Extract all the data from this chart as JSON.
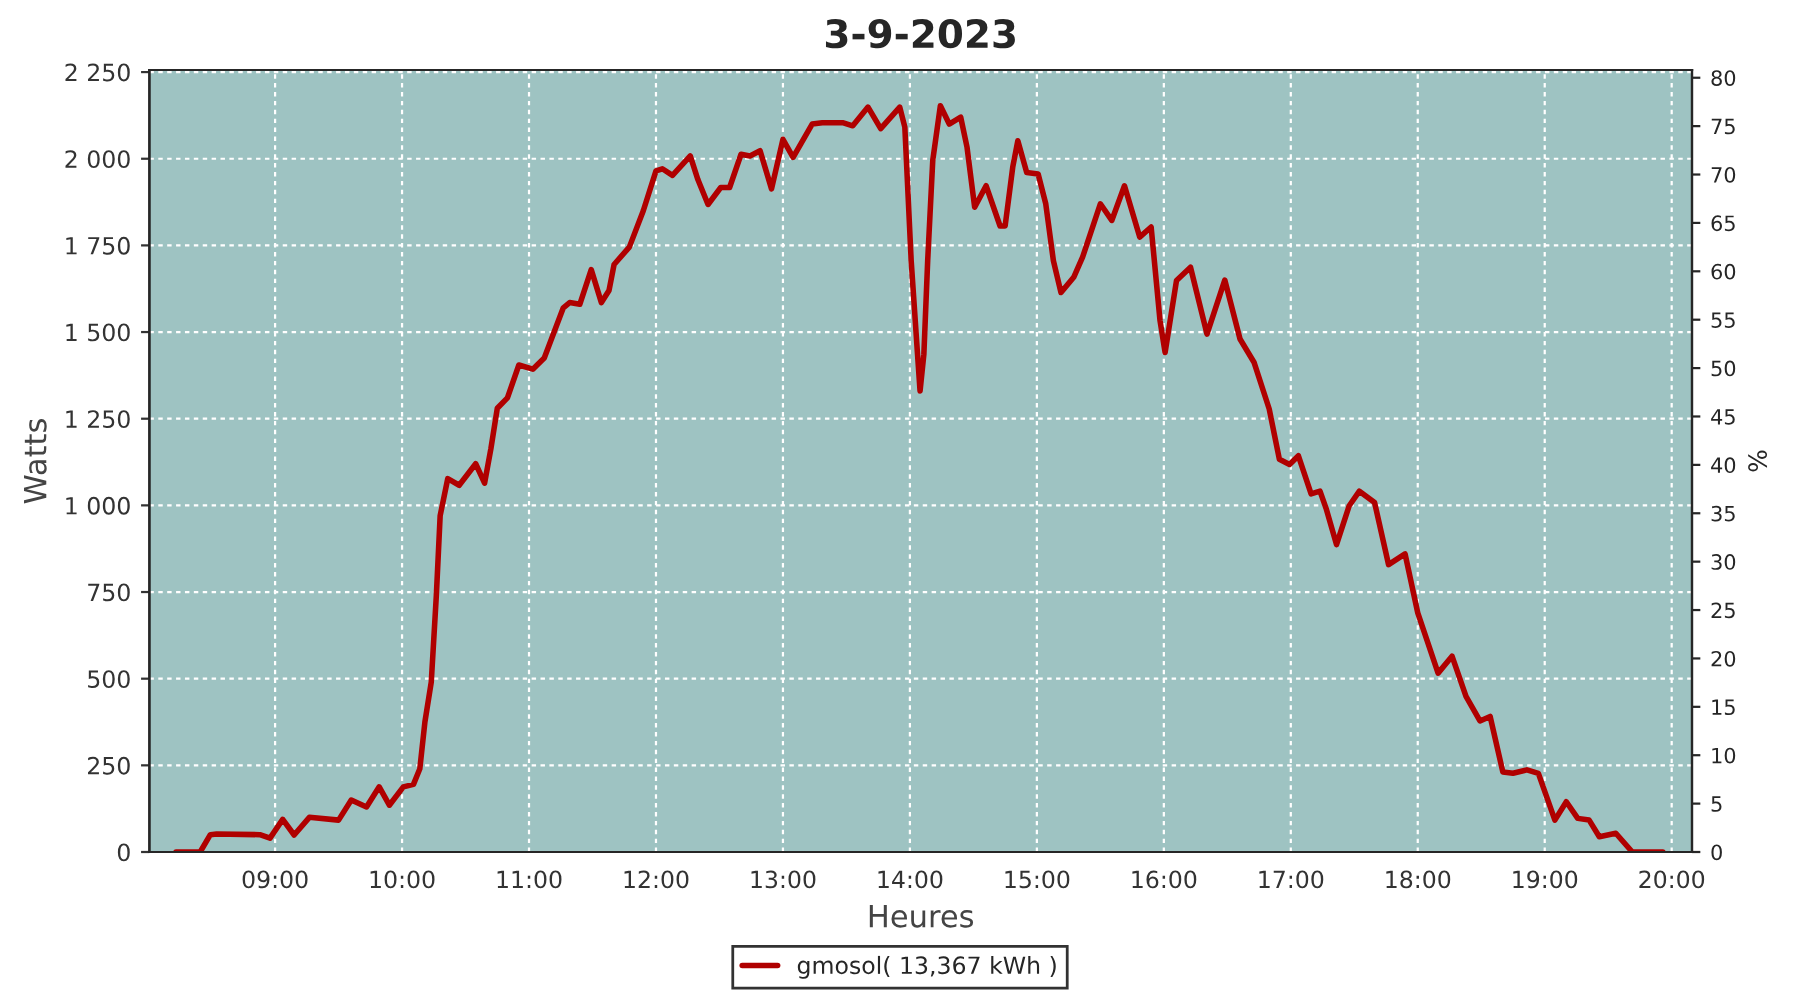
{
  "chart_data": {
    "type": "line",
    "title": "3-9-2023",
    "xlabel": "Heures",
    "ylabel": "Watts",
    "y2label": "%",
    "x": [
      8.22,
      8.41,
      8.49,
      8.54,
      8.88,
      8.96,
      9.06,
      9.15,
      9.27,
      9.5,
      9.6,
      9.72,
      9.82,
      9.9,
      10.01,
      10.09,
      10.14,
      10.18,
      10.23,
      10.27,
      10.3,
      10.36,
      10.45,
      10.58,
      10.65,
      10.7,
      10.75,
      10.83,
      10.92,
      11.03,
      11.12,
      11.27,
      11.32,
      11.4,
      11.49,
      11.57,
      11.63,
      11.67,
      11.79,
      11.9,
      12.0,
      12.05,
      12.13,
      12.27,
      12.33,
      12.41,
      12.51,
      12.58,
      12.67,
      12.74,
      12.82,
      12.91,
      13.0,
      13.08,
      13.23,
      13.31,
      13.47,
      13.55,
      13.67,
      13.77,
      13.92,
      13.96,
      14.01,
      14.06,
      14.08,
      14.11,
      14.14,
      14.18,
      14.24,
      14.31,
      14.4,
      14.45,
      14.51,
      14.6,
      14.71,
      14.75,
      14.81,
      14.85,
      14.92,
      15.01,
      15.07,
      15.13,
      15.19,
      15.29,
      15.36,
      15.5,
      15.59,
      15.69,
      15.81,
      15.9,
      15.97,
      16.01,
      16.1,
      16.21,
      16.34,
      16.48,
      16.6,
      16.71,
      16.83,
      16.91,
      16.99,
      17.06,
      17.16,
      17.23,
      17.28,
      17.36,
      17.46,
      17.54,
      17.66,
      17.77,
      17.9,
      18.0,
      18.16,
      18.27,
      18.38,
      18.49,
      18.57,
      18.67,
      18.75,
      18.86,
      18.95,
      19.08,
      19.17,
      19.26,
      19.35,
      19.43,
      19.56,
      19.69,
      19.93
    ],
    "series": [
      {
        "name": "gmosol( 13,367 kWh )",
        "color": "#b00000",
        "values": [
          0,
          0,
          50,
          52,
          50,
          40,
          94,
          49,
          100,
          92,
          150,
          130,
          188,
          135,
          188,
          195,
          240,
          375,
          490,
          740,
          970,
          1077,
          1058,
          1120,
          1064,
          1164,
          1280,
          1310,
          1405,
          1393,
          1425,
          1570,
          1585,
          1580,
          1680,
          1585,
          1620,
          1695,
          1745,
          1850,
          1965,
          1971,
          1952,
          2008,
          1940,
          1868,
          1917,
          1917,
          2013,
          2008,
          2023,
          1913,
          2056,
          2004,
          2100,
          2104,
          2104,
          2095,
          2149,
          2087,
          2149,
          2091,
          1706,
          1436,
          1330,
          1436,
          1706,
          1995,
          2153,
          2100,
          2120,
          2033,
          1860,
          1922,
          1806,
          1806,
          1976,
          2052,
          1960,
          1956,
          1870,
          1706,
          1614,
          1658,
          1716,
          1870,
          1822,
          1922,
          1774,
          1803,
          1533,
          1441,
          1649,
          1687,
          1494,
          1650,
          1480,
          1413,
          1278,
          1133,
          1118,
          1143,
          1033,
          1041,
          989,
          887,
          999,
          1041,
          1008,
          829,
          860,
          690,
          516,
          565,
          449,
          378,
          391,
          231,
          227,
          237,
          227,
          92,
          145,
          97,
          92,
          44,
          54,
          0,
          0
        ]
      }
    ],
    "xlim": [
      8.01,
      20.16
    ],
    "xticks": [
      {
        "value": 9,
        "label": "09:00"
      },
      {
        "value": 10,
        "label": "10:00"
      },
      {
        "value": 11,
        "label": "11:00"
      },
      {
        "value": 12,
        "label": "12:00"
      },
      {
        "value": 13,
        "label": "13:00"
      },
      {
        "value": 14,
        "label": "14:00"
      },
      {
        "value": 15,
        "label": "15:00"
      },
      {
        "value": 16,
        "label": "16:00"
      },
      {
        "value": 17,
        "label": "17:00"
      },
      {
        "value": 18,
        "label": "18:00"
      },
      {
        "value": 19,
        "label": "19:00"
      },
      {
        "value": 20,
        "label": "20:00"
      }
    ],
    "ylim": [
      0,
      2256
    ],
    "yticks": [
      0,
      250,
      500,
      750,
      {
        "value": 1000,
        "label": "1 000"
      },
      {
        "value": 1250,
        "label": "1 250"
      },
      {
        "value": 1500,
        "label": "1 500"
      },
      {
        "value": 1750,
        "label": "1 750"
      },
      {
        "value": 2000,
        "label": "2 000"
      },
      {
        "value": 2250,
        "label": "2 250"
      }
    ],
    "y2lim": [
      0,
      80.8
    ],
    "y2ticks": [
      0,
      5,
      10,
      15,
      20,
      25,
      30,
      35,
      40,
      45,
      50,
      55,
      60,
      65,
      70,
      75,
      80
    ],
    "grid": true,
    "legend": "bottom",
    "marker": "none",
    "line_style": "solid"
  }
}
